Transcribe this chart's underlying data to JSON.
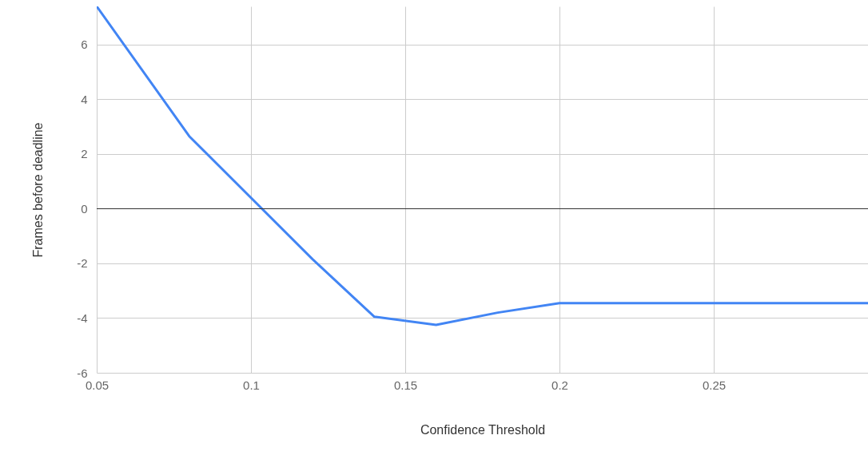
{
  "chart_data": {
    "type": "line",
    "xlabel": "Confidence Threshold",
    "ylabel": "Frames before deadline",
    "x": [
      0.05,
      0.08,
      0.12,
      0.14,
      0.16,
      0.18,
      0.2,
      0.3
    ],
    "series": [
      {
        "color": "#4285f4",
        "values": [
          7.4,
          2.65,
          -1.85,
          -3.95,
          -4.25,
          -3.8,
          -3.45,
          -3.45
        ]
      }
    ],
    "xlim": [
      0.05,
      0.3
    ],
    "xticks": [
      0.05,
      0.1,
      0.15,
      0.2,
      0.25
    ],
    "ylim": [
      -6,
      7.4
    ],
    "yticks": [
      -6,
      -4,
      -2,
      0,
      2,
      4,
      6
    ],
    "grid": true,
    "ref_lines": [
      {
        "axis": "y",
        "value": 0,
        "color": "#333333"
      }
    ]
  }
}
